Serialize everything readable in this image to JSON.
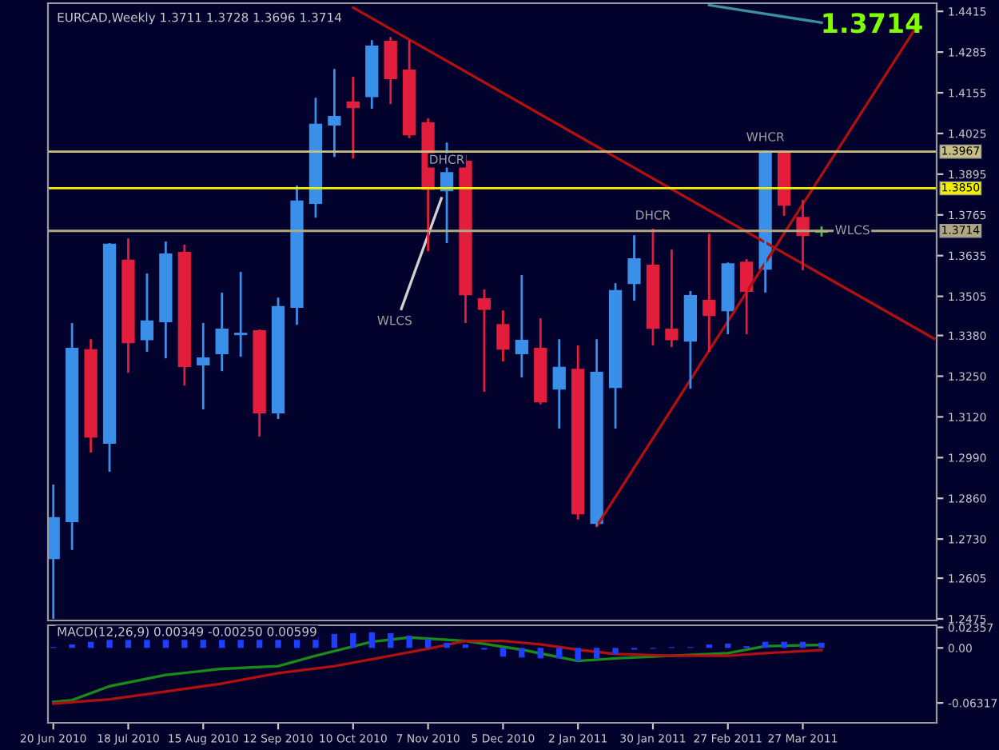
{
  "chart_data": [
    {
      "type": "candlestick",
      "title": "EURCAD,Weekly 1.3711 1.3728 1.3696 1.3714",
      "x": [
        "2010-06-20",
        "2010-06-27",
        "2010-07-04",
        "2010-07-11",
        "2010-07-18",
        "2010-07-25",
        "2010-08-01",
        "2010-08-08",
        "2010-08-15",
        "2010-08-22",
        "2010-08-29",
        "2010-09-05",
        "2010-09-12",
        "2010-09-19",
        "2010-09-26",
        "2010-10-03",
        "2010-10-10",
        "2010-10-17",
        "2010-10-24",
        "2010-10-31",
        "2010-11-07",
        "2010-11-14",
        "2010-11-21",
        "2010-11-28",
        "2010-12-05",
        "2010-12-12",
        "2010-12-19",
        "2010-12-26",
        "2011-01-02",
        "2011-01-09",
        "2011-01-16",
        "2011-01-23",
        "2011-01-30",
        "2011-02-06",
        "2011-02-13",
        "2011-02-20",
        "2011-02-27",
        "2011-03-06",
        "2011-03-13",
        "2011-03-20",
        "2011-03-27",
        "2011-04-03"
      ],
      "ohlc": [
        [
          1.2669,
          1.2904,
          1.2475,
          1.2797
        ],
        [
          1.2787,
          1.342,
          1.2695,
          1.3338
        ],
        [
          1.3333,
          1.3368,
          1.3006,
          1.3057
        ],
        [
          1.3037,
          1.3675,
          1.2945,
          1.367
        ],
        [
          1.3619,
          1.369,
          1.3261,
          1.3358
        ],
        [
          1.3368,
          1.3578,
          1.3328,
          1.3425
        ],
        [
          1.3425,
          1.368,
          1.3307,
          1.3639
        ],
        [
          1.3644,
          1.367,
          1.322,
          1.3282
        ],
        [
          1.3287,
          1.342,
          1.3144,
          1.3307
        ],
        [
          1.3323,
          1.3517,
          1.3266,
          1.3399
        ],
        [
          1.3384,
          1.3583,
          1.3312,
          1.3386
        ],
        [
          1.3394,
          1.3399,
          1.3057,
          1.3134
        ],
        [
          1.3134,
          1.3501,
          1.3113,
          1.3471
        ],
        [
          1.3471,
          1.3859,
          1.3414,
          1.3808
        ],
        [
          1.3803,
          1.4139,
          1.3756,
          1.4053
        ],
        [
          1.4053,
          1.4231,
          1.395,
          1.4078
        ],
        [
          1.4124,
          1.4206,
          1.3945,
          1.4109
        ],
        [
          1.4144,
          1.4323,
          1.4104,
          1.4303
        ],
        [
          1.4318,
          1.4333,
          1.4119,
          1.4201
        ],
        [
          1.4226,
          1.4323,
          1.401,
          1.4022
        ],
        [
          1.4058,
          1.4073,
          1.3649,
          1.3848
        ],
        [
          1.3843,
          1.3996,
          1.3675,
          1.3899
        ],
        [
          1.3935,
          1.3956,
          1.342,
          1.3511
        ],
        [
          1.3496,
          1.3527,
          1.32,
          1.3465
        ],
        [
          1.3414,
          1.346,
          1.3297,
          1.3338
        ],
        [
          1.3323,
          1.3573,
          1.3246,
          1.3363
        ],
        [
          1.3338,
          1.3435,
          1.316,
          1.3169
        ],
        [
          1.321,
          1.3368,
          1.3083,
          1.3277
        ],
        [
          1.3271,
          1.3348,
          1.2792,
          1.2812
        ],
        [
          1.2781,
          1.3368,
          1.2771,
          1.3261
        ],
        [
          1.3215,
          1.3547,
          1.3083,
          1.3522
        ],
        [
          1.3547,
          1.37,
          1.3491,
          1.3624
        ],
        [
          1.3603,
          1.3721,
          1.3348,
          1.3404
        ],
        [
          1.3399,
          1.3654,
          1.3343,
          1.3368
        ],
        [
          1.3363,
          1.3522,
          1.321,
          1.3506
        ],
        [
          1.3491,
          1.3705,
          1.3328,
          1.3445
        ],
        [
          1.346,
          1.3613,
          1.3384,
          1.3608
        ],
        [
          1.3613,
          1.3624,
          1.3384,
          1.3522
        ],
        [
          1.3593,
          1.3971,
          1.3517,
          1.3961
        ],
        [
          1.3961,
          1.3971,
          1.3762,
          1.3797
        ],
        [
          1.3756,
          1.3813,
          1.3588,
          1.37
        ],
        [
          1.3711,
          1.3728,
          1.3696,
          1.3714
        ]
      ],
      "colors": [
        "#3a8fe8",
        "#3a8fe8",
        "#e31e3c",
        "#3a8fe8",
        "#e31e3c",
        "#3a8fe8",
        "#3a8fe8",
        "#e31e3c",
        "#3a8fe8",
        "#3a8fe8",
        "#3a8fe8",
        "#e31e3c",
        "#3a8fe8",
        "#3a8fe8",
        "#3a8fe8",
        "#3a8fe8",
        "#e31e3c",
        "#3a8fe8",
        "#e31e3c",
        "#e31e3c",
        "#e31e3c",
        "#3a8fe8",
        "#e31e3c",
        "#e31e3c",
        "#e31e3c",
        "#3a8fe8",
        "#e31e3c",
        "#3a8fe8",
        "#e31e3c",
        "#3a8fe8",
        "#3a8fe8",
        "#3a8fe8",
        "#e31e3c",
        "#e31e3c",
        "#3a8fe8",
        "#e31e3c",
        "#3a8fe8",
        "#e31e3c",
        "#3a8fe8",
        "#e31e3c",
        "#e31e3c",
        "#40c040"
      ],
      "series": [
        {
          "type": "line",
          "color": "#b01010",
          "x": [
            "2010-10-10",
            "2011-05-15"
          ],
          "values": [
            1.4427,
            1.337
          ]
        },
        {
          "type": "line",
          "color": "#b01010",
          "x": [
            "2011-01-09",
            "2011-05-08"
          ],
          "values": [
            1.2771,
            1.436
          ]
        },
        {
          "type": "line",
          "color": "#3a8fa0",
          "x": [
            "2011-02-20",
            "2011-04-03"
          ],
          "values": [
            1.4435,
            1.4379
          ]
        },
        {
          "type": "line",
          "color": "#d0d0d0",
          "x": [
            "2010-10-28",
            "2010-11-12"
          ],
          "values": [
            1.3465,
            1.3818
          ]
        }
      ],
      "ref_lines": [
        {
          "axis": "y",
          "value": 1.3967,
          "label": "1.3967",
          "color": "#c8c080"
        },
        {
          "axis": "y",
          "value": 1.385,
          "label": "1.3850",
          "color": "#f0f000"
        },
        {
          "axis": "y",
          "value": 1.3714,
          "label": "1.3714",
          "color": "#b0a880"
        }
      ],
      "annotations": [
        "1.3714",
        {
          "text": "WHCR",
          "x": "2011-03-13",
          "y": 1.3971
        },
        {
          "text": "DHCR",
          "x": "2010-11-14",
          "y": 1.3899
        },
        {
          "text": "DHCR",
          "x": "2011-01-30",
          "y": 1.3721
        },
        {
          "text": "WLCS",
          "x": "2010-10-28",
          "y": 1.3465
        },
        {
          "text": "WLCS",
          "x": "2011-04-03",
          "y": 1.3714
        }
      ],
      "xlim": [
        "2010-06-18",
        "2011-05-16"
      ],
      "ylim": [
        1.247,
        1.4441
      ],
      "yticks": [
        {
          "value": 1.4415,
          "label": "1.4415"
        },
        {
          "value": 1.4285,
          "label": "1.4285"
        },
        {
          "value": 1.4155,
          "label": "1.4155"
        },
        {
          "value": 1.4025,
          "label": "1.4025"
        },
        {
          "value": 1.3895,
          "label": "1.3895"
        },
        {
          "value": 1.3765,
          "label": "1.3765"
        },
        {
          "value": 1.3635,
          "label": "1.3635"
        },
        {
          "value": 1.3505,
          "label": "1.3505"
        },
        {
          "value": 1.338,
          "label": "1.3380"
        },
        {
          "value": 1.325,
          "label": "1.3250"
        },
        {
          "value": 1.312,
          "label": "1.3120"
        },
        {
          "value": 1.299,
          "label": "1.2990"
        },
        {
          "value": 1.286,
          "label": "1.2860"
        },
        {
          "value": 1.273,
          "label": "1.2730"
        },
        {
          "value": 1.2605,
          "label": "1.2605"
        },
        {
          "value": 1.2475,
          "label": "1.2475"
        }
      ],
      "tick_labels": "y"
    },
    {
      "type": "bar",
      "title": "MACD(12,26,9) 0.00349 -0.00250 0.00599",
      "x": [
        "2010-06-20",
        "2010-06-27",
        "2010-07-04",
        "2010-07-11",
        "2010-07-18",
        "2010-07-25",
        "2010-08-01",
        "2010-08-08",
        "2010-08-15",
        "2010-08-22",
        "2010-08-29",
        "2010-09-05",
        "2010-09-12",
        "2010-09-19",
        "2010-09-26",
        "2010-10-03",
        "2010-10-10",
        "2010-10-17",
        "2010-10-24",
        "2010-10-31",
        "2010-11-07",
        "2010-11-14",
        "2010-11-21",
        "2010-11-28",
        "2010-12-05",
        "2010-12-12",
        "2010-12-19",
        "2010-12-26",
        "2011-01-02",
        "2011-01-09",
        "2011-01-16",
        "2011-01-23",
        "2011-01-30",
        "2011-02-06",
        "2011-02-13",
        "2011-02-20",
        "2011-02-27",
        "2011-03-06",
        "2011-03-13",
        "2011-03-20",
        "2011-03-27",
        "2011-04-03"
      ],
      "series": [
        {
          "type": "bar",
          "color": "#1f3fff",
          "values": [
            0.001,
            0.004,
            0.007,
            0.011,
            0.012,
            0.012,
            0.013,
            0.012,
            0.012,
            0.012,
            0.012,
            0.011,
            0.011,
            0.012,
            0.014,
            0.016,
            0.017,
            0.018,
            0.017,
            0.014,
            0.01,
            0.006,
            0.004,
            -0.002,
            -0.01,
            -0.011,
            -0.012,
            -0.012,
            -0.015,
            -0.012,
            -0.007,
            -0.002,
            -0.001,
            0.001,
            0.001,
            0.004,
            0.005,
            0.002,
            0.007,
            0.007,
            0.007,
            0.00599
          ]
        },
        {
          "type": "line",
          "color": "#1a8a1a",
          "x": [
            "2010-06-20",
            "2010-06-27",
            "2010-07-11",
            "2010-08-01",
            "2010-08-22",
            "2010-09-12",
            "2010-09-26",
            "2010-10-17",
            "2010-10-31",
            "2010-11-21",
            "2010-12-12",
            "2011-01-02",
            "2011-01-16",
            "2011-02-06",
            "2011-02-27",
            "2011-03-13",
            "2011-04-03"
          ],
          "values": [
            -0.062,
            -0.06,
            -0.044,
            -0.031,
            -0.024,
            -0.021,
            -0.009,
            0.007,
            0.012,
            0.008,
            -0.002,
            -0.015,
            -0.012,
            -0.009,
            -0.006,
            0.002,
            0.00349
          ]
        },
        {
          "type": "line",
          "color": "#b01010",
          "x": [
            "2010-06-20",
            "2010-07-11",
            "2010-08-01",
            "2010-08-22",
            "2010-09-12",
            "2010-10-03",
            "2010-10-24",
            "2010-11-07",
            "2010-11-21",
            "2010-12-05",
            "2010-12-19",
            "2011-01-02",
            "2011-01-16",
            "2011-02-06",
            "2011-02-27",
            "2011-03-13",
            "2011-04-03"
          ],
          "values": [
            -0.064,
            -0.059,
            -0.05,
            -0.041,
            -0.029,
            -0.021,
            -0.009,
            -0.001,
            0.008,
            0.008,
            0.004,
            -0.002,
            -0.007,
            -0.009,
            -0.009,
            -0.006,
            -0.0025
          ]
        }
      ],
      "xlim": [
        "2010-06-18",
        "2011-05-16"
      ],
      "ylim": [
        -0.086,
        0.026
      ],
      "yticks": [
        {
          "value": 0.02357,
          "label": "0.02357"
        },
        {
          "value": 0,
          "label": "0.00"
        },
        {
          "value": -0.06317,
          "label": "-0.06317"
        }
      ],
      "xticks": [
        {
          "value": "2010-06-20",
          "label": "20 Jun 2010"
        },
        {
          "value": "2010-07-18",
          "label": "18 Jul 2010"
        },
        {
          "value": "2010-08-15",
          "label": "15 Aug 2010"
        },
        {
          "value": "2010-09-12",
          "label": "12 Sep 2010"
        },
        {
          "value": "2010-10-10",
          "label": "10 Oct 2010"
        },
        {
          "value": "2010-11-07",
          "label": "7 Nov 2010"
        },
        {
          "value": "2010-12-05",
          "label": "5 Dec 2010"
        },
        {
          "value": "2011-01-02",
          "label": "2 Jan 2011"
        },
        {
          "value": "2011-01-30",
          "label": "30 Jan 2011"
        },
        {
          "value": "2011-02-27",
          "label": "27 Feb 2011"
        },
        {
          "value": "2011-03-27",
          "label": "27 Mar 2011"
        }
      ]
    }
  ]
}
